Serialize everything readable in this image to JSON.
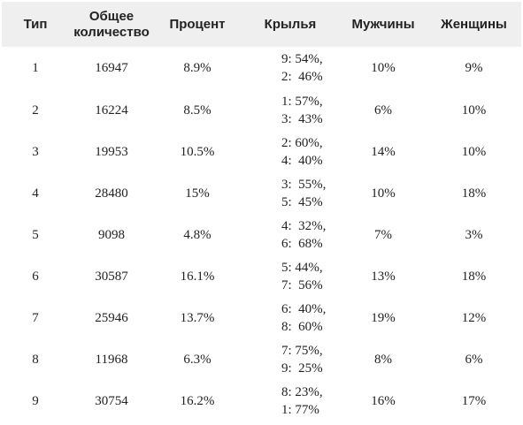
{
  "table": {
    "headers": [
      "Тип",
      "Общее количество",
      "Процент",
      "Крылья",
      "Мужчины",
      "Женщины"
    ],
    "headers_lines": {
      "total_line1": "Общее",
      "total_line2": "количество"
    },
    "rows": [
      {
        "type": "1",
        "total": "16947",
        "percent": "8.9%",
        "wing1": "9: 54%,",
        "wing2": "2:  46%",
        "men": "10%",
        "women": "9%"
      },
      {
        "type": "2",
        "total": "16224",
        "percent": "8.5%",
        "wing1": "1: 57%,",
        "wing2": "3:  43%",
        "men": "6%",
        "women": "10%"
      },
      {
        "type": "3",
        "total": "19953",
        "percent": "10.5%",
        "wing1": "2: 60%,",
        "wing2": "4:  40%",
        "men": "14%",
        "women": "10%"
      },
      {
        "type": "4",
        "total": "28480",
        "percent": "15%",
        "wing1": "3:  55%,",
        "wing2": "5:  45%",
        "men": "10%",
        "women": "18%"
      },
      {
        "type": "5",
        "total": "9098",
        "percent": "4.8%",
        "wing1": "4:  32%,",
        "wing2": "6:  68%",
        "men": "7%",
        "women": "3%"
      },
      {
        "type": "6",
        "total": "30587",
        "percent": "16.1%",
        "wing1": "5: 44%,",
        "wing2": "7:  56%",
        "men": "13%",
        "women": "18%"
      },
      {
        "type": "7",
        "total": "25946",
        "percent": "13.7%",
        "wing1": "6:  40%,",
        "wing2": "8:  60%",
        "men": "19%",
        "women": "12%"
      },
      {
        "type": "8",
        "total": "11968",
        "percent": "6.3%",
        "wing1": "7: 75%,",
        "wing2": "9:  25%",
        "men": "8%",
        "women": "6%"
      },
      {
        "type": "9",
        "total": "30754",
        "percent": "16.2%",
        "wing1": "8: 23%,",
        "wing2": "1: 77%",
        "men": "16%",
        "women": "17%"
      }
    ]
  }
}
